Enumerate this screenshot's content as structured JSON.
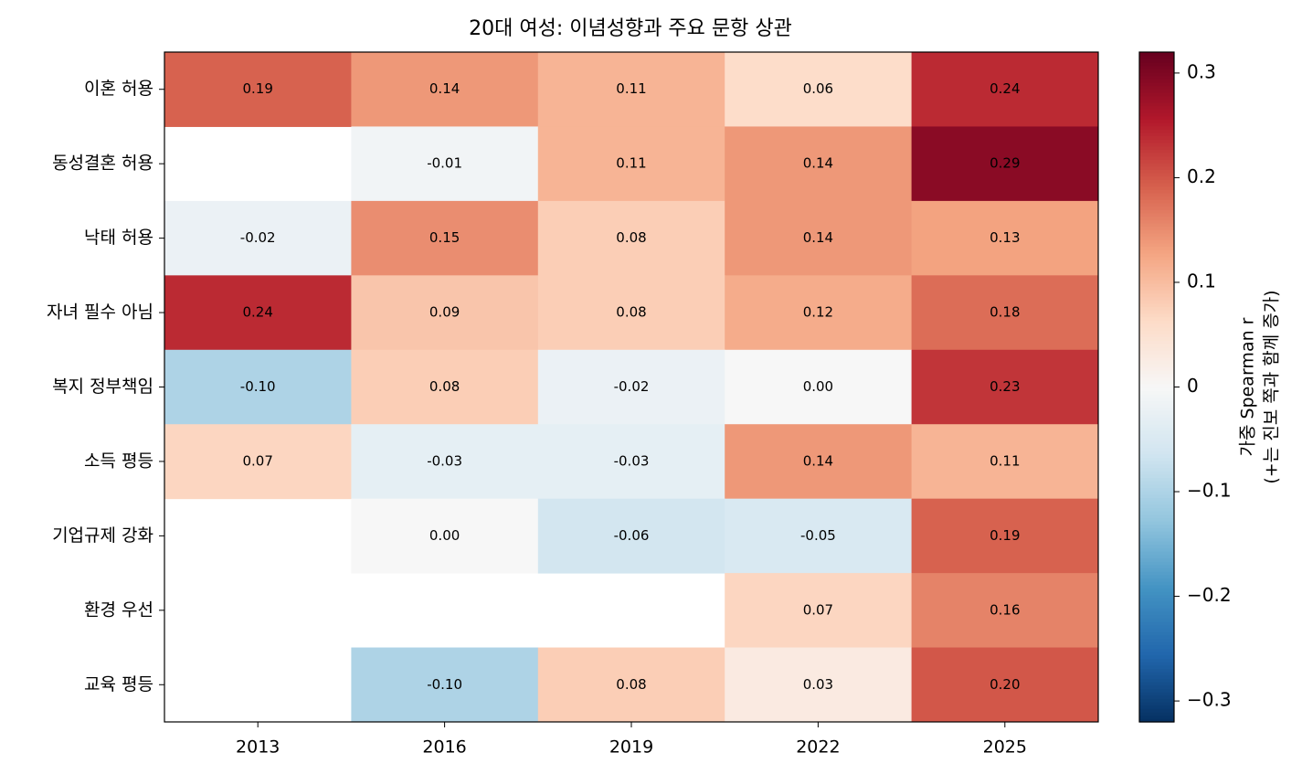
{
  "chart_data": {
    "type": "heatmap",
    "title": "20대 여성: 이념성향과 주요 문항 상관",
    "categories": [
      "2013",
      "2016",
      "2019",
      "2022",
      "2025"
    ],
    "rows": [
      "이혼 허용",
      "동성결혼 허용",
      "낙태 허용",
      "자녀 필수 아님",
      "복지 정부책임",
      "소득 평등",
      "기업규제 강화",
      "환경 우선",
      "교육 평등"
    ],
    "values": [
      [
        0.19,
        0.14,
        0.11,
        0.06,
        0.24
      ],
      [
        null,
        -0.01,
        0.11,
        0.14,
        0.29
      ],
      [
        -0.02,
        0.15,
        0.08,
        0.14,
        0.13
      ],
      [
        0.24,
        0.09,
        0.08,
        0.12,
        0.18
      ],
      [
        -0.1,
        0.08,
        -0.02,
        0,
        0.23
      ],
      [
        0.07,
        -0.03,
        -0.03,
        0.14,
        0.11
      ],
      [
        null,
        0,
        -0.06,
        -0.05,
        0.19
      ],
      [
        null,
        null,
        null,
        0.07,
        0.16
      ],
      [
        null,
        -0.1,
        0.08,
        0.03,
        0.2
      ]
    ],
    "value_labels": [
      [
        "0.19",
        "0.14",
        "0.11",
        "0.06",
        "0.24"
      ],
      [
        null,
        "-0.01",
        "0.11",
        "0.14",
        "0.29"
      ],
      [
        "-0.02",
        "0.15",
        "0.08",
        "0.14",
        "0.13"
      ],
      [
        "0.24",
        "0.09",
        "0.08",
        "0.12",
        "0.18"
      ],
      [
        "-0.10",
        "0.08",
        "-0.02",
        "0.00",
        "0.23"
      ],
      [
        "0.07",
        "-0.03",
        "-0.03",
        "0.14",
        "0.11"
      ],
      [
        null,
        "0.00",
        "-0.06",
        "-0.05",
        "0.19"
      ],
      [
        null,
        null,
        null,
        "0.07",
        "0.16"
      ],
      [
        null,
        "-0.10",
        "0.08",
        "0.03",
        "0.20"
      ]
    ],
    "colormap": [
      "#053061",
      "#2166ac",
      "#4393c3",
      "#92c5de",
      "#d1e5f0",
      "#f7f7f7",
      "#fddbc7",
      "#f4a582",
      "#d6604d",
      "#b2182b",
      "#67001f"
    ],
    "clim": [
      -0.32,
      0.32
    ],
    "cticks": [
      {
        "value": -0.3,
        "label": "−0.3"
      },
      {
        "value": -0.2,
        "label": "−0.2"
      },
      {
        "value": -0.1,
        "label": "−0.1"
      },
      0.0,
      0.1,
      0.2,
      0.3
    ],
    "colorbar_label": [
      "가중 Spearman r",
      "(+는 진보 쪽과 함께 증가)"
    ]
  }
}
